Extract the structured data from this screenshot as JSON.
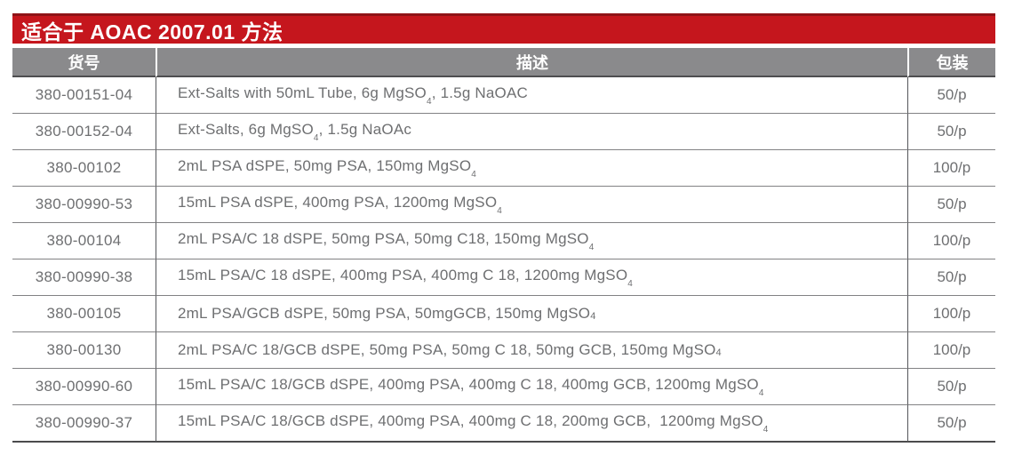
{
  "title_bar": {
    "text": "适合于 AOAC 2007.01 方法",
    "background": "#c5161d",
    "top_edge_color": "#8f1317",
    "text_color": "#ffffff"
  },
  "table": {
    "columns": [
      {
        "key": "catalog",
        "label": "货号"
      },
      {
        "key": "description",
        "label": "描述"
      },
      {
        "key": "pack",
        "label": "包装"
      }
    ],
    "header_background": "#8a8a8c",
    "header_text_color": "#ffffff",
    "body_text_color": "#6e6f71",
    "row_border_color": "#828284",
    "outer_border_color": "#4b4b4d",
    "rows": [
      {
        "catalog": "380-00151-04",
        "description": [
          "Ext-Salts with 50mL Tube, 6g MgSO",
          {
            "sub": "4",
            "style": "drop"
          },
          ", 1.5g NaOAC"
        ],
        "pack": "50/p"
      },
      {
        "catalog": "380-00152-04",
        "description": [
          "Ext-Salts, 6g MgSO",
          {
            "sub": "4",
            "style": "drop"
          },
          ", 1.5g NaOAc"
        ],
        "pack": "50/p"
      },
      {
        "catalog": "380-00102",
        "description": [
          "2mL PSA dSPE, 50mg PSA, 150mg MgSO",
          {
            "sub": "4",
            "style": "drop"
          }
        ],
        "pack": "100/p"
      },
      {
        "catalog": "380-00990-53",
        "description": [
          "15mL PSA dSPE, 400mg PSA, 1200mg MgSO",
          {
            "sub": "4",
            "style": "drop"
          }
        ],
        "pack": "50/p"
      },
      {
        "catalog": "380-00104",
        "description": [
          "2mL PSA/C 18 dSPE, 50mg PSA, 50mg C18, 150mg MgSO",
          {
            "sub": "4",
            "style": "drop"
          }
        ],
        "pack": "100/p"
      },
      {
        "catalog": "380-00990-38",
        "description": [
          "15mL PSA/C 18 dSPE, 400mg PSA, 400mg C 18, 1200mg MgSO",
          {
            "sub": "4",
            "style": "drop"
          }
        ],
        "pack": "50/p"
      },
      {
        "catalog": "380-00105",
        "description": [
          "2mL PSA/GCB dSPE, 50mg PSA, 50mgGCB, 150mg MgSO",
          {
            "sub": "4",
            "style": "base"
          }
        ],
        "pack": "100/p"
      },
      {
        "catalog": "380-00130",
        "description": [
          "2mL PSA/C 18/GCB dSPE, 50mg PSA, 50mg C 18, 50mg GCB, 150mg MgSO",
          {
            "sub": "4",
            "style": "base"
          }
        ],
        "pack": "100/p"
      },
      {
        "catalog": "380-00990-60",
        "description": [
          "15mL PSA/C 18/GCB dSPE, 400mg PSA, 400mg C 18, 400mg GCB, 1200mg MgSO",
          {
            "sub": "4",
            "style": "drop"
          }
        ],
        "pack": "50/p"
      },
      {
        "catalog": "380-00990-37",
        "description": [
          "15mL PSA/C 18/GCB dSPE, 400mg PSA, 400mg C 18, 200mg GCB,  1200mg MgSO",
          {
            "sub": "4",
            "style": "drop"
          }
        ],
        "pack": "50/p"
      }
    ]
  }
}
